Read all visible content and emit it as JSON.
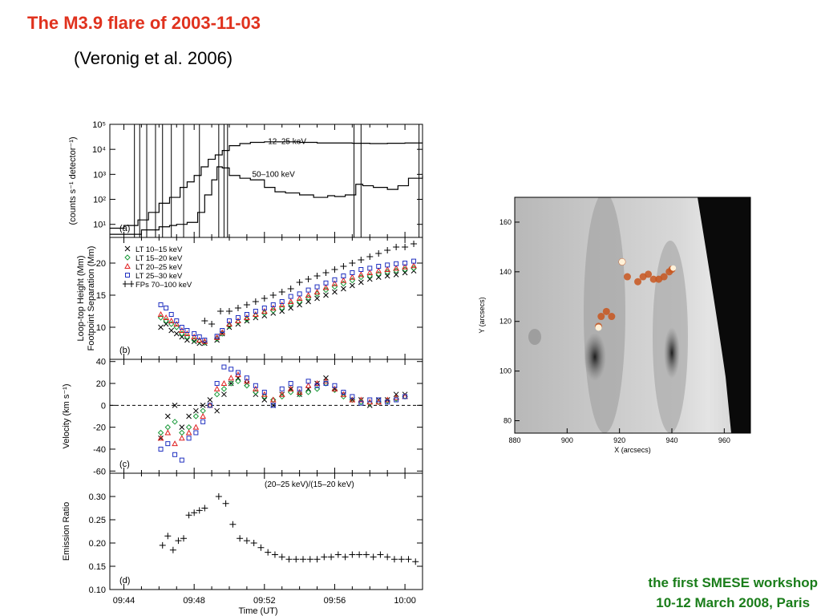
{
  "slide": {
    "title": "The M3.9 flare of 2003-11-03",
    "subtitle": "(Veronig et al. 2006)",
    "footer_line1": "the first SMESE workshop",
    "footer_line2": "10-12 March 2008, Paris"
  },
  "colors": {
    "title": "#e0321e",
    "footer": "#1a7d1a",
    "lt_10_15": "#000000",
    "lt_15_20": "#1a9a3a",
    "lt_20_25": "#e02020",
    "lt_25_30": "#2030c0",
    "fp_70_100": "#000000"
  },
  "chart_data": [
    {
      "panel": "(a)",
      "type": "line",
      "ylabel": "(counts s⁻¹ detector⁻¹)",
      "yscale": "log",
      "ylim": [
        3,
        100000
      ],
      "ytick_labels": [
        "10¹",
        "10²",
        "10³",
        "10⁴",
        "10⁵"
      ],
      "ytick_values": [
        10,
        100,
        1000,
        10000,
        100000
      ],
      "xlim": [
        43.2,
        61.0
      ],
      "vlines": [
        44.6,
        44.9,
        45.3,
        45.8,
        46.2,
        46.7,
        47.4,
        48.3,
        49.4,
        49.7,
        49.9,
        57.1,
        57.5,
        60.8
      ],
      "series": [
        {
          "name": "12–25 keV",
          "x": [
            43.2,
            44,
            44.8,
            45.4,
            46,
            46.6,
            47.2,
            47.6,
            48,
            48.4,
            48.8,
            49.2,
            49.6,
            50,
            50.6,
            51.2,
            52,
            53,
            54,
            55,
            56,
            57,
            58,
            59,
            60,
            61
          ],
          "y": [
            7,
            9,
            15,
            30,
            70,
            120,
            300,
            500,
            900,
            2000,
            4000,
            6000,
            9000,
            14000,
            17000,
            19000,
            20000,
            20000,
            19000,
            18000,
            18000,
            17500,
            17000,
            17500,
            18000,
            18000
          ]
        },
        {
          "name": "50–100 keV",
          "x": [
            43.2,
            44,
            45,
            46,
            46.6,
            47,
            47.6,
            48.2,
            48.6,
            49,
            49.3,
            49.6,
            50,
            50.6,
            51.2,
            52,
            52.6,
            53.2,
            54,
            54.8,
            55.6,
            56,
            56.6,
            57.2,
            57.6,
            58.2,
            59,
            59.6,
            60.2,
            61
          ],
          "y": [
            4,
            4,
            6,
            8,
            9,
            10,
            12,
            30,
            150,
            600,
            2000,
            1800,
            900,
            700,
            600,
            300,
            200,
            180,
            150,
            120,
            140,
            130,
            150,
            400,
            350,
            300,
            250,
            350,
            700,
            900
          ]
        }
      ]
    },
    {
      "panel": "(b)",
      "type": "scatter",
      "ylabel": "Loop-top Height (Mm) / Footpoint Separation (Mm)",
      "ylim": [
        5,
        24
      ],
      "ytick_values": [
        10,
        15,
        20
      ],
      "xlim": [
        43.2,
        61.0
      ],
      "series": [
        {
          "name": "LT 10–15 keV",
          "marker": "x",
          "x": [
            46.1,
            46.4,
            46.7,
            47.0,
            47.3,
            47.6,
            48.0,
            48.3,
            48.6,
            49.3,
            49.6,
            50.0,
            50.5,
            51.0,
            51.5,
            52.0,
            52.5,
            53.0,
            53.5,
            54.0,
            54.5,
            55.0,
            55.5,
            56.0,
            56.5,
            57.0,
            57.5,
            58.0,
            58.5,
            59.0,
            59.5,
            60.0,
            60.5
          ],
          "y": [
            10,
            10.5,
            9.5,
            9,
            8.5,
            8,
            7.8,
            7.5,
            7.5,
            8,
            9,
            10,
            10.5,
            11,
            11.5,
            11.8,
            12.2,
            12.5,
            13,
            13.5,
            14,
            14.5,
            15,
            15.5,
            16,
            16.5,
            17,
            17.5,
            17.8,
            18,
            18.2,
            18.5,
            18.8
          ]
        },
        {
          "name": "LT 15–20 keV",
          "marker": "diamond",
          "x": [
            46.1,
            46.4,
            46.7,
            47.0,
            47.3,
            47.6,
            48.0,
            48.3,
            48.6,
            49.3,
            49.6,
            50.0,
            50.5,
            51.0,
            51.5,
            52.0,
            52.5,
            53.0,
            53.5,
            54.0,
            54.5,
            55.0,
            55.5,
            56.0,
            56.5,
            57.0,
            57.5,
            58.0,
            58.5,
            59.0,
            59.5,
            60.0,
            60.5
          ],
          "y": [
            11.5,
            11,
            10.5,
            10,
            9,
            8.5,
            8,
            7.8,
            7.6,
            8.2,
            9,
            10.2,
            10.8,
            11.2,
            11.8,
            12.2,
            12.6,
            13,
            13.6,
            14,
            14.6,
            15.2,
            15.8,
            16.3,
            16.8,
            17.3,
            17.8,
            18,
            18.3,
            18.6,
            18.8,
            19,
            19.2
          ]
        },
        {
          "name": "LT 20–25 keV",
          "marker": "triangle",
          "x": [
            46.1,
            46.4,
            46.7,
            47.0,
            47.3,
            47.6,
            48.0,
            48.3,
            48.6,
            49.3,
            49.6,
            50.0,
            50.5,
            51.0,
            51.5,
            52.0,
            52.5,
            53.0,
            53.5,
            54.0,
            54.5,
            55.0,
            55.5,
            56.0,
            56.5,
            57.0,
            57.5,
            58.0,
            58.5,
            59.0,
            59.5,
            60.0,
            60.5
          ],
          "y": [
            12,
            11.5,
            11,
            10.5,
            9.5,
            9,
            8.5,
            8,
            7.8,
            8.4,
            9.2,
            10.5,
            11,
            11.5,
            12,
            12.5,
            13,
            13.5,
            14,
            14.5,
            15,
            15.5,
            16.2,
            16.8,
            17.3,
            17.8,
            18.2,
            18.5,
            18.8,
            19,
            19.2,
            19.4,
            19.6
          ]
        },
        {
          "name": "LT 25–30 keV",
          "marker": "square",
          "x": [
            46.1,
            46.4,
            46.7,
            47.0,
            47.3,
            47.6,
            48.0,
            48.3,
            48.6,
            49.3,
            49.6,
            50.0,
            50.5,
            51.0,
            51.5,
            52.0,
            52.5,
            53.0,
            53.5,
            54.0,
            54.5,
            55.0,
            55.5,
            56.0,
            56.5,
            57.0,
            57.5,
            58.0,
            58.5,
            59.0,
            59.5,
            60.0,
            60.5
          ],
          "y": [
            13.5,
            13,
            12,
            11,
            10,
            9.5,
            9,
            8.5,
            8,
            8.6,
            9.5,
            11,
            11.5,
            12,
            12.5,
            13,
            13.5,
            14,
            14.8,
            15.2,
            15.8,
            16.3,
            16.9,
            17.4,
            18,
            18.5,
            19,
            19.2,
            19.5,
            19.7,
            19.9,
            20,
            20.3
          ]
        },
        {
          "name": "FPs 70–100 keV",
          "marker": "plus",
          "x": [
            48.6,
            49.0,
            49.5,
            50.0,
            50.5,
            51.0,
            51.5,
            52.0,
            52.5,
            53.0,
            53.5,
            54.0,
            54.5,
            55.0,
            55.5,
            56.0,
            56.5,
            57.0,
            57.5,
            58.0,
            58.5,
            59.0,
            59.5,
            60.0,
            60.5
          ],
          "y": [
            11,
            10.5,
            12.5,
            12.5,
            13,
            13.5,
            14,
            14.5,
            15,
            15.5,
            16,
            17,
            17.5,
            18,
            18.5,
            19,
            19.5,
            20,
            20.5,
            21,
            21.5,
            22,
            22.5,
            22.5,
            23
          ]
        }
      ]
    },
    {
      "panel": "(c)",
      "type": "scatter",
      "ylabel": "Velocity (km s⁻¹)",
      "ylim": [
        -62,
        42
      ],
      "ytick_values": [
        -60,
        -40,
        -20,
        0,
        20,
        40
      ],
      "zero_line": "dashed",
      "xlim": [
        43.2,
        61.0
      ],
      "series": [
        {
          "name": "LT 10–15 keV",
          "marker": "x",
          "x": [
            46.1,
            46.5,
            46.9,
            47.3,
            47.7,
            48.1,
            48.5,
            48.9,
            49.3,
            49.7,
            50.1,
            50.5,
            51.0,
            51.5,
            52.0,
            52.5,
            53.0,
            53.5,
            54.0,
            54.5,
            55.0,
            55.5,
            56.0,
            56.5,
            57.0,
            57.5,
            58.0,
            58.5,
            59.0,
            59.5,
            60.0
          ],
          "y": [
            -30,
            -10,
            0,
            -20,
            -10,
            -5,
            0,
            5,
            -5,
            10,
            20,
            25,
            20,
            10,
            5,
            0,
            10,
            15,
            10,
            15,
            20,
            25,
            15,
            10,
            5,
            5,
            0,
            5,
            5,
            10,
            10
          ]
        },
        {
          "name": "LT 15–20 keV",
          "marker": "diamond",
          "x": [
            46.1,
            46.5,
            46.9,
            47.3,
            47.7,
            48.1,
            48.5,
            48.9,
            49.3,
            49.7,
            50.1,
            50.5,
            51.0,
            51.5,
            52.0,
            52.5,
            53.0,
            53.5,
            54.0,
            54.5,
            55.0,
            55.5,
            56.0,
            56.5,
            57.0,
            57.5,
            58.0,
            58.5,
            59.0,
            59.5,
            60.0
          ],
          "y": [
            -25,
            -20,
            -15,
            -25,
            -20,
            -10,
            -5,
            0,
            10,
            15,
            20,
            22,
            18,
            12,
            8,
            5,
            8,
            12,
            10,
            12,
            15,
            20,
            14,
            8,
            5,
            3,
            2,
            3,
            4,
            6,
            8
          ]
        },
        {
          "name": "LT 20–25 keV",
          "marker": "triangle",
          "x": [
            46.1,
            46.5,
            46.9,
            47.3,
            47.7,
            48.1,
            48.5,
            48.9,
            49.3,
            49.7,
            50.1,
            50.5,
            51.0,
            51.5,
            52.0,
            52.5,
            53.0,
            53.5,
            54.0,
            54.5,
            55.0,
            55.5,
            56.0,
            56.5,
            57.0,
            57.5,
            58.0,
            58.5,
            59.0,
            59.5,
            60.0
          ],
          "y": [
            -30,
            -25,
            -35,
            -30,
            -25,
            -20,
            -10,
            0,
            15,
            20,
            25,
            28,
            22,
            15,
            10,
            5,
            10,
            15,
            12,
            18,
            20,
            22,
            15,
            10,
            5,
            5,
            3,
            3,
            5,
            7,
            8
          ]
        },
        {
          "name": "LT 25–30 keV",
          "marker": "square",
          "x": [
            46.1,
            46.5,
            46.9,
            47.3,
            47.7,
            48.1,
            48.5,
            48.9,
            49.3,
            49.7,
            50.1,
            50.5,
            51.0,
            51.5,
            52.0,
            52.5,
            53.0,
            53.5,
            54.0,
            54.5,
            55.0,
            55.5,
            56.0,
            56.5,
            57.0,
            57.5,
            58.0,
            58.5,
            59.0,
            59.5,
            60.0
          ],
          "y": [
            -40,
            -35,
            -45,
            -50,
            -30,
            -25,
            -15,
            0,
            20,
            35,
            33,
            30,
            25,
            18,
            12,
            0,
            15,
            20,
            15,
            22,
            18,
            20,
            18,
            12,
            8,
            2,
            5,
            5,
            3,
            5,
            8
          ]
        }
      ]
    },
    {
      "panel": "(d)",
      "type": "scatter",
      "ylabel": "Emission Ratio",
      "annotation": "(20–25 keV)/(15–20 keV)",
      "ylim": [
        0.1,
        0.35
      ],
      "ytick_values": [
        0.1,
        0.15,
        0.2,
        0.25,
        0.3
      ],
      "ytick_labels": [
        "0.10",
        "0.15",
        "0.20",
        "0.25",
        "0.30"
      ],
      "xlim": [
        43.2,
        61.0
      ],
      "xlabel": "Time (UT)",
      "xtick_values": [
        44,
        48,
        52,
        56,
        60
      ],
      "xtick_labels": [
        "09:44",
        "09:48",
        "09:52",
        "09:56",
        "10:00"
      ],
      "series": [
        {
          "name": "(20–25 keV)/(15–20 keV)",
          "marker": "plus",
          "x": [
            46.2,
            46.5,
            46.8,
            47.1,
            47.4,
            47.7,
            48.0,
            48.3,
            48.6,
            49.4,
            49.8,
            50.2,
            50.6,
            51.0,
            51.4,
            51.8,
            52.2,
            52.6,
            53.0,
            53.4,
            53.8,
            54.2,
            54.6,
            55.0,
            55.4,
            55.8,
            56.2,
            56.6,
            57.0,
            57.4,
            57.8,
            58.2,
            58.6,
            59.0,
            59.4,
            59.8,
            60.2,
            60.6
          ],
          "y": [
            0.195,
            0.215,
            0.185,
            0.205,
            0.21,
            0.26,
            0.265,
            0.27,
            0.275,
            0.3,
            0.285,
            0.24,
            0.21,
            0.205,
            0.2,
            0.19,
            0.18,
            0.175,
            0.17,
            0.165,
            0.165,
            0.165,
            0.165,
            0.165,
            0.17,
            0.17,
            0.175,
            0.17,
            0.175,
            0.175,
            0.175,
            0.17,
            0.175,
            0.17,
            0.165,
            0.165,
            0.165,
            0.16
          ]
        }
      ]
    },
    {
      "panel": "image",
      "type": "scatter",
      "xlabel": "X (arcsecs)",
      "ylabel": "Y (arcsecs)",
      "xlim": [
        880,
        970
      ],
      "ylim": [
        75,
        170
      ],
      "xtick_values": [
        880,
        900,
        920,
        940,
        960
      ],
      "ytick_values": [
        80,
        100,
        120,
        140,
        160
      ],
      "description": "grayscale solar image with colored HXR source positions",
      "series": [
        {
          "name": "sources",
          "x": [
            921,
            923,
            927,
            929,
            931,
            933,
            935,
            937,
            939,
            940,
            913,
            915,
            917,
            912
          ],
          "y": [
            144,
            138,
            136,
            138,
            139,
            137,
            137,
            138,
            140,
            141,
            122,
            124,
            122,
            118
          ]
        }
      ]
    }
  ]
}
